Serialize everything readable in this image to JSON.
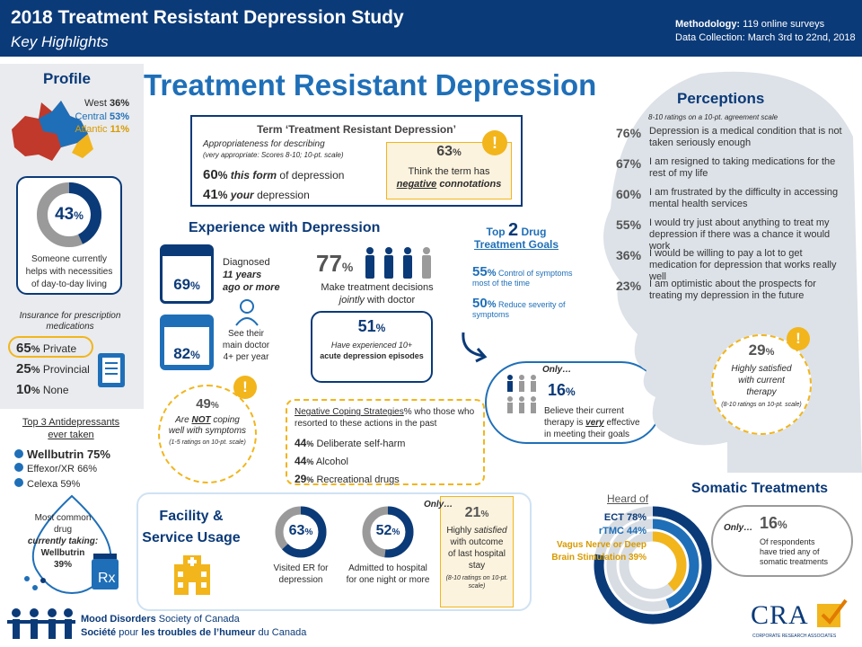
{
  "header": {
    "title": "2018 Treatment Resistant Depression Study",
    "subtitle": "Key Highlights",
    "methodology_label": "Methodology:",
    "methodology_value": "119 online surveys",
    "collection_label": "Data Collection:",
    "collection_value": "March 3rd to 22nd, 2018"
  },
  "main_title": "Treatment Resistant Depression",
  "profile": {
    "title": "Profile",
    "west": "West",
    "west_pct": "36%",
    "central": "Central",
    "central_pct": "53%",
    "atlantic": "Atlantic",
    "atlantic_pct": "11%",
    "helper_pct": "43",
    "helper_value": 0.43,
    "helper_text": "Someone currently helps with necessities of day-to-day living"
  },
  "insurance": {
    "title": "Insurance for prescription medications",
    "rows": [
      {
        "pct": "65",
        "label": "Private"
      },
      {
        "pct": "25",
        "label": "Provincial"
      },
      {
        "pct": "10",
        "label": "None"
      }
    ]
  },
  "antidepressants": {
    "title": "Top 3 Antidepressants ever taken",
    "items": [
      {
        "name": "Wellbutrin",
        "pct": "75%"
      },
      {
        "name": "Effexor/XR",
        "pct": "66%"
      },
      {
        "name": "Celexa",
        "pct": "59%"
      }
    ],
    "current_line1": "Most common drug",
    "current_line2": "currently taking:",
    "current_drug": "Wellbutrin",
    "current_pct": "39%"
  },
  "term": {
    "title": "Term ‘Treatment Resistant Depression’",
    "approp": "Appropriateness for describing",
    "approp_note": "(very appropriate: Scores 8-10; 10-pt. scale)",
    "row1_pct": "60",
    "row1_mid": "this form",
    "row1_end": "of depression",
    "row2_pct": "41",
    "row2_mid": "your",
    "row2_end": "depression",
    "neg_pct": "63",
    "neg_text1": "Think the term has",
    "neg_word": "negative",
    "neg_text2": "connotations"
  },
  "experience": {
    "title": "Experience with Depression",
    "diag_pct": "69",
    "diag_l1": "Diagnosed",
    "diag_l2": "11 years",
    "diag_l3": "ago or more",
    "doc_pct": "82",
    "doc_text": "See their main doctor 4+ per year",
    "joint_pct": "77",
    "joint_l1": "Make treatment decisions",
    "joint_l2": "jointly",
    "joint_l3": "with doctor",
    "episodes_pct": "51",
    "episodes_l1": "Have experienced 10+",
    "episodes_l2": "acute depression episodes"
  },
  "coping": {
    "pct": "49",
    "l1": "Are",
    "l1_neg": "NOT",
    "l1_end": "coping",
    "l2": "well with symptoms",
    "note": "(1-5 ratings on 10-pt. scale)"
  },
  "negative": {
    "title_u": "Negative Coping Strategies",
    "title_rest": "% who those who resorted to these actions in the past",
    "rows": [
      {
        "pct": "44",
        "label": "Deliberate self-harm"
      },
      {
        "pct": "44",
        "label": "Alcohol"
      },
      {
        "pct": "29",
        "label": "Recreational drugs"
      }
    ]
  },
  "goals": {
    "t1": "Top",
    "t2": "2",
    "t3": "Drug",
    "t4": "Treatment Goals",
    "g1_pct": "55",
    "g1": "Control of symptoms most of the time",
    "g2_pct": "50",
    "g2": "Reduce severity of symptoms"
  },
  "only16": {
    "only": "Only…",
    "pct": "16",
    "l1": "Believe their current",
    "l2a": "therapy is",
    "l2b": "very",
    "l2c": "effective",
    "l3": "in meeting their goals"
  },
  "perceptions": {
    "title": "Perceptions",
    "note": "8-10 ratings on a 10-pt. agreement scale",
    "rows": [
      {
        "pct": "76%",
        "text": "Depression is a medical condition that is not taken seriously enough"
      },
      {
        "pct": "67%",
        "text": "I am resigned to taking medications for the rest of my life"
      },
      {
        "pct": "60%",
        "text": "I am frustrated by the difficulty in accessing mental health services"
      },
      {
        "pct": "55%",
        "text": "I would try just about anything to treat my depression if there was a chance it would work"
      },
      {
        "pct": "36%",
        "text": "I would be willing to pay a lot to get medication for depression that works really well"
      },
      {
        "pct": "23%",
        "text": "I am optimistic about the prospects for treating my depression in the future"
      }
    ],
    "sat_pct": "29",
    "sat_l1": "Highly satisfied",
    "sat_l2": "with current",
    "sat_l3": "therapy",
    "sat_note": "(8-10 ratings on 10-pt. scale)"
  },
  "facility": {
    "title1": "Facility &",
    "title2": "Service Usage",
    "er_pct": "63",
    "er_value": 0.63,
    "er_text": "Visited ER for depression",
    "adm_pct": "52",
    "adm_value": 0.52,
    "adm_text": "Admitted to hospital for one night or more",
    "only": "Only…",
    "sat_pct": "21",
    "sat_l1": "Highly",
    "sat_l1b": "satisfied",
    "sat_l2": "with outcome",
    "sat_l3": "of last hospital stay",
    "sat_note": "(8-10 ratings on 10-pt. scale)"
  },
  "somatic": {
    "title": "Somatic Treatments",
    "heard": "Heard of",
    "ect": "ECT 78%",
    "ect_value": 0.78,
    "rtmc": "rTMC 44%",
    "rtmc_value": 0.44,
    "vns1": "Vagus Nerve or Deep",
    "vns2": "Brain Stimulation 39%",
    "vns_value": 0.39,
    "only": "Only…",
    "pct": "16",
    "l1": "Of respondents",
    "l2": "have tried any of",
    "l3": "somatic treatments"
  },
  "footer": {
    "org1a": "Mood Disorders",
    "org1b": "Society of Canada",
    "org2a": "Société",
    "org2b": "pour",
    "org2c": "les troubles de l’humeur",
    "org2d": "du Canada",
    "cra": "CRA",
    "cra_sub": "CORPORATE RESEARCH ASSOCIATES"
  },
  "colors": {
    "navy": "#0b3a78",
    "blue": "#1f6fb8",
    "gold": "#f2b51b",
    "gray": "#9a9a9a"
  }
}
